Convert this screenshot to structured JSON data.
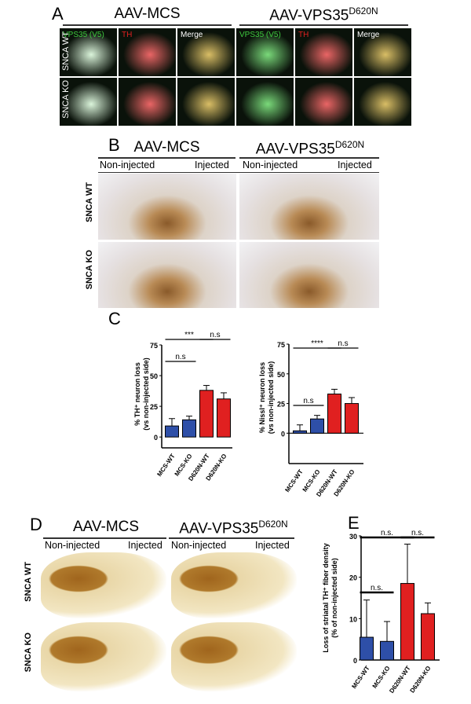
{
  "panelA": {
    "letter": "A",
    "header_left": "AAV-MCS",
    "header_right": "AAV-VPS35",
    "header_right_sup": "D620N",
    "columns": [
      "VPS35 (V5)",
      "TH",
      "Merge",
      "VPS35 (V5)",
      "TH",
      "Merge"
    ],
    "rows": [
      "SNCA WT",
      "SNCA KO"
    ],
    "colors": {
      "v5": "#3ec83e",
      "th": "#e02020",
      "merge": "#ffffff"
    }
  },
  "panelB": {
    "letter": "B",
    "header_left": "AAV-MCS",
    "header_right": "AAV-VPS35",
    "header_right_sup": "D620N",
    "sub": [
      "Non-injected",
      "Injected",
      "Non-injected",
      "Injected"
    ],
    "rows": [
      "SNCA WT",
      "SNCA KO"
    ]
  },
  "panelC": {
    "letter": "C"
  },
  "panelD": {
    "letter": "D",
    "header_left": "AAV-MCS",
    "header_right": "AAV-VPS35",
    "header_right_sup": "D620N",
    "sub": [
      "Non-injected",
      "Injected",
      "Non-injected",
      "Injected"
    ],
    "rows": [
      "SNCA WT",
      "SNCA KO"
    ]
  },
  "panelE": {
    "letter": "E"
  },
  "chart_data": [
    {
      "type": "bar",
      "panel": "C-left",
      "categories": [
        "MCS-WT",
        "MCS-KO",
        "D620N-WT",
        "D620N-KO"
      ],
      "values": [
        9,
        14,
        38,
        31
      ],
      "errors": [
        6,
        3,
        4,
        5
      ],
      "colors": [
        "#2e4fa8",
        "#2e4fa8",
        "#e02020",
        "#e02020"
      ],
      "ylabel": "% TH⁺ neuron loss (vs non-injected side)",
      "ylim": [
        -5,
        75
      ],
      "yticks": [
        0,
        25,
        50,
        75
      ],
      "annotations": [
        {
          "label": "n.s",
          "from": 0,
          "to": 1
        },
        {
          "label": "***",
          "from": 0,
          "to": 2
        },
        {
          "label": "n.s",
          "from": 2,
          "to": 3
        }
      ]
    },
    {
      "type": "bar",
      "panel": "C-right",
      "categories": [
        "MCS-WT",
        "MCS-KO",
        "D620N-WT",
        "D620N-KO"
      ],
      "values": [
        2,
        12,
        33,
        25
      ],
      "errors": [
        5,
        3,
        4,
        5
      ],
      "colors": [
        "#2e4fa8",
        "#2e4fa8",
        "#e02020",
        "#e02020"
      ],
      "ylabel": "% Nissl⁺ neuron loss (vs non-injected side)",
      "ylim": [
        -15,
        75
      ],
      "yticks": [
        0,
        25,
        50,
        75
      ],
      "annotations": [
        {
          "label": "n.s",
          "from": 0,
          "to": 1
        },
        {
          "label": "****",
          "from": 0,
          "to": 2
        },
        {
          "label": "n.s",
          "from": 2,
          "to": 3
        }
      ]
    },
    {
      "type": "bar",
      "panel": "E",
      "categories": [
        "MCS-WT",
        "MCS-KO",
        "D620N-WT",
        "D620N-KO"
      ],
      "values": [
        5.5,
        4.5,
        18.5,
        11.2
      ],
      "errors": [
        9,
        4.8,
        9.5,
        2.6
      ],
      "colors": [
        "#2e4fa8",
        "#2e4fa8",
        "#e02020",
        "#e02020"
      ],
      "ylabel": "Loss of striatal TH⁺ fiber density (% of non-injected side)",
      "ylim": [
        0,
        30
      ],
      "yticks": [
        0,
        10,
        20,
        30
      ],
      "annotations": [
        {
          "label": "n.s.",
          "from": 0,
          "to": 1
        },
        {
          "label": "n.s.",
          "from": 0,
          "to": 2
        },
        {
          "label": "n.s.",
          "from": 2,
          "to": 3
        }
      ]
    }
  ]
}
